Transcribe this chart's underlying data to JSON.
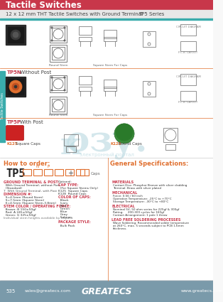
{
  "title": "Tactile Switches",
  "subtitle": "12 x 12 mm THT Tactile Switches with Ground Terminal",
  "series": "TP5 Series",
  "header_bg": "#c8374a",
  "subheader_bg": "#3aacac",
  "subheader_text_bg": "#e8e8e8",
  "footer_bg": "#7a9aaa",
  "body_bg": "#f8f8f8",
  "accent_color": "#e07030",
  "teal_color": "#3aacac",
  "red_color": "#c8374a",
  "orange_color": "#e07030",
  "watermark_color": "#b8d8e0",
  "left_tab_color": "#3aacac",
  "footer_text_color": "#ffffff",
  "page_number": "535",
  "email": "sales@greatecs.com",
  "website": "www.greatecs.com",
  "company": "GREATECS",
  "tpn5_label": "TP5N",
  "tpn5_sub": "Without Post",
  "tpsp_label": "TP5P",
  "tpsp_sub": "With Post",
  "ordering_title": "How to order:",
  "specs_title": "General Specifications:"
}
